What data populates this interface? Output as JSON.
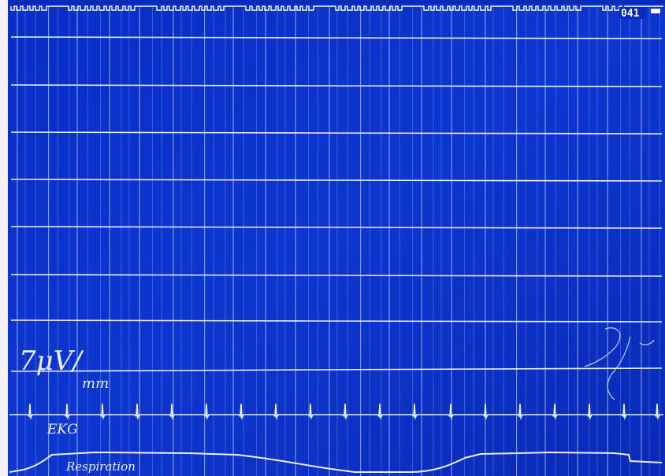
{
  "recording": {
    "frame_number": "041",
    "scale_label_top": "7μV/",
    "scale_label_bottom": "mm",
    "ekg_label": "EKG",
    "respiration_label": "Respiration",
    "colors": {
      "background": "#0b2fc4",
      "trace": "#e8f0ff",
      "timing_mark": "#dfe8ff"
    }
  }
}
